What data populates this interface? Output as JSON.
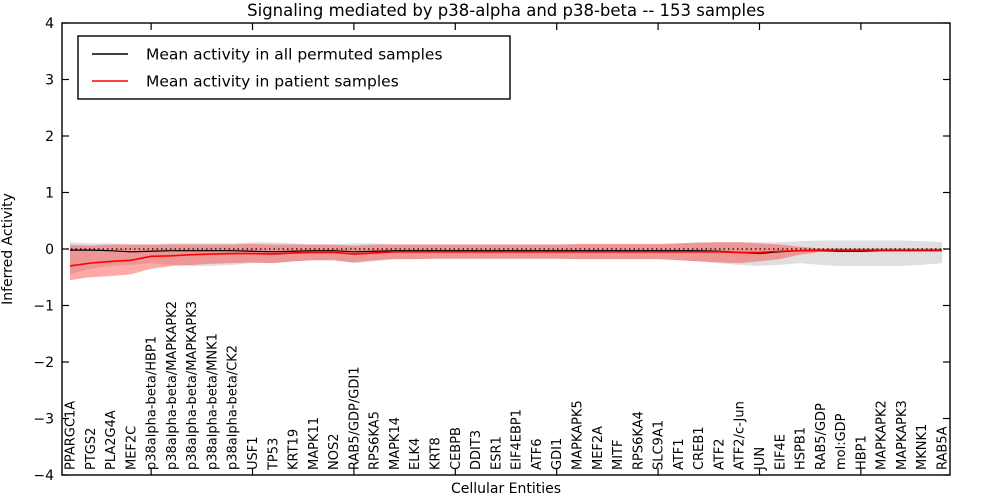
{
  "figure": {
    "title": "Signaling mediated by p38-alpha and p38-beta -- 153 samples",
    "xlabel": "Cellular Entities",
    "ylabel": "Inferred Activity"
  },
  "legend": {
    "position": "upper left",
    "entries": [
      {
        "label": "Mean activity in all permuted samples",
        "color": "#000000"
      },
      {
        "label": "Mean activity in patient samples",
        "color": "#ff0000"
      }
    ]
  },
  "colors": {
    "permuted_line": "#000000",
    "permuted_band": "#808080",
    "patient_line": "#ff0000",
    "patient_band": "#ff3333",
    "zero_line": "#000000",
    "axis": "#000000",
    "background": "#ffffff"
  },
  "chart_data": {
    "type": "line",
    "title": "Signaling mediated by p38-alpha and p38-beta -- 153 samples",
    "xlabel": "Cellular Entities",
    "ylabel": "Inferred Activity",
    "ylim": [
      -4,
      4
    ],
    "grid": false,
    "legend_position": "upper left",
    "zero_line": {
      "y": 0,
      "style": "dotted",
      "color": "#000000"
    },
    "yticks": {
      "values": [
        4,
        3,
        2,
        1,
        0,
        -1,
        -2,
        -3,
        -4
      ],
      "labels": [
        "4",
        "3",
        "2",
        "1",
        "0",
        "−1",
        "−2",
        "−3",
        "−4"
      ]
    },
    "xtick_marker_indices": [
      4,
      9,
      14,
      19,
      24,
      29,
      34,
      39
    ],
    "categories": [
      "PPARGC1A",
      "PTGS2",
      "PLA2G4A",
      "MEF2C",
      "p38alpha-beta/HBP1",
      "p38alpha-beta/MAPKAPK2",
      "p38alpha-beta/MAPKAPK3",
      "p38alpha-beta/MNK1",
      "p38alpha-beta/CK2",
      "USF1",
      "TP53",
      "KRT19",
      "MAPK11",
      "NOS2",
      "RAB5/GDP/GDI1",
      "RPS6KA5",
      "MAPK14",
      "ELK4",
      "KRT8",
      "CEBPB",
      "DDIT3",
      "ESR1",
      "EIF4EBP1",
      "ATF6",
      "GDI1",
      "MAPKAPK5",
      "MEF2A",
      "MITF",
      "RPS6KA4",
      "SLC9A1",
      "ATF1",
      "CREB1",
      "ATF2",
      "ATF2/c-Jun",
      "JUN",
      "EIF4E",
      "HSPB1",
      "RAB5/GDP",
      "mol:GDP",
      "HBP1",
      "MAPKAPK2",
      "MAPKAPK3",
      "MKNK1",
      "RAB5A"
    ],
    "series": [
      {
        "name": "Mean activity in all permuted samples",
        "color": "#000000",
        "line_width": 1.2,
        "band_color": "#808080",
        "band_opacity": 0.25,
        "values": [
          -0.02,
          -0.02,
          -0.03,
          -0.05,
          -0.04,
          -0.03,
          -0.03,
          -0.03,
          -0.03,
          -0.04,
          -0.05,
          -0.04,
          -0.03,
          -0.03,
          -0.05,
          -0.04,
          -0.03,
          -0.03,
          -0.03,
          -0.03,
          -0.03,
          -0.03,
          -0.03,
          -0.03,
          -0.03,
          -0.03,
          -0.03,
          -0.03,
          -0.03,
          -0.03,
          -0.03,
          -0.03,
          -0.04,
          -0.06,
          -0.08,
          -0.05,
          -0.03,
          -0.03,
          -0.04,
          -0.04,
          -0.03,
          -0.03,
          -0.03,
          -0.03
        ],
        "band_hi": [
          0.12,
          0.1,
          0.1,
          0.08,
          0.08,
          0.1,
          0.1,
          0.1,
          0.1,
          0.12,
          0.12,
          0.1,
          0.08,
          0.08,
          0.1,
          0.1,
          0.08,
          0.08,
          0.08,
          0.08,
          0.08,
          0.08,
          0.08,
          0.08,
          0.08,
          0.08,
          0.08,
          0.08,
          0.08,
          0.08,
          0.1,
          0.12,
          0.12,
          0.12,
          0.12,
          0.12,
          0.14,
          0.15,
          0.15,
          0.15,
          0.15,
          0.15,
          0.14,
          0.12
        ],
        "band_lo": [
          -0.45,
          -0.35,
          -0.3,
          -0.28,
          -0.25,
          -0.28,
          -0.3,
          -0.3,
          -0.28,
          -0.25,
          -0.25,
          -0.22,
          -0.2,
          -0.2,
          -0.25,
          -0.22,
          -0.18,
          -0.18,
          -0.18,
          -0.18,
          -0.18,
          -0.18,
          -0.18,
          -0.18,
          -0.18,
          -0.18,
          -0.18,
          -0.18,
          -0.18,
          -0.18,
          -0.2,
          -0.22,
          -0.25,
          -0.28,
          -0.3,
          -0.28,
          -0.25,
          -0.28,
          -0.3,
          -0.3,
          -0.3,
          -0.3,
          -0.28,
          -0.25
        ]
      },
      {
        "name": "Mean activity in patient samples",
        "color": "#ff0000",
        "line_width": 1.6,
        "band_color": "#ff3333",
        "band_opacity": 0.42,
        "values": [
          -0.3,
          -0.25,
          -0.22,
          -0.2,
          -0.13,
          -0.12,
          -0.1,
          -0.09,
          -0.08,
          -0.08,
          -0.09,
          -0.07,
          -0.06,
          -0.06,
          -0.09,
          -0.07,
          -0.05,
          -0.05,
          -0.05,
          -0.05,
          -0.05,
          -0.05,
          -0.05,
          -0.05,
          -0.05,
          -0.05,
          -0.05,
          -0.05,
          -0.05,
          -0.05,
          -0.05,
          -0.05,
          -0.05,
          -0.06,
          -0.06,
          -0.04,
          -0.03,
          -0.02,
          -0.02,
          -0.02,
          -0.02,
          -0.02,
          -0.02,
          -0.02
        ],
        "band_hi": [
          0.07,
          0.06,
          0.08,
          0.08,
          0.08,
          0.08,
          0.08,
          0.08,
          0.08,
          0.09,
          0.08,
          0.08,
          0.08,
          0.08,
          0.06,
          0.08,
          0.08,
          0.08,
          0.08,
          0.08,
          0.08,
          0.08,
          0.08,
          0.08,
          0.08,
          0.09,
          0.09,
          0.09,
          0.09,
          0.09,
          0.1,
          0.11,
          0.12,
          0.12,
          0.1,
          0.08,
          0.04,
          0.01,
          0.01,
          0.01,
          0.01,
          0.01,
          0.01,
          0.01
        ],
        "band_lo": [
          -0.55,
          -0.5,
          -0.48,
          -0.45,
          -0.35,
          -0.3,
          -0.28,
          -0.26,
          -0.25,
          -0.24,
          -0.25,
          -0.22,
          -0.2,
          -0.2,
          -0.24,
          -0.2,
          -0.18,
          -0.18,
          -0.17,
          -0.17,
          -0.17,
          -0.17,
          -0.17,
          -0.17,
          -0.17,
          -0.18,
          -0.18,
          -0.18,
          -0.18,
          -0.18,
          -0.2,
          -0.22,
          -0.24,
          -0.25,
          -0.22,
          -0.18,
          -0.1,
          -0.05,
          -0.04,
          -0.04,
          -0.04,
          -0.04,
          -0.04,
          -0.04
        ]
      }
    ]
  }
}
